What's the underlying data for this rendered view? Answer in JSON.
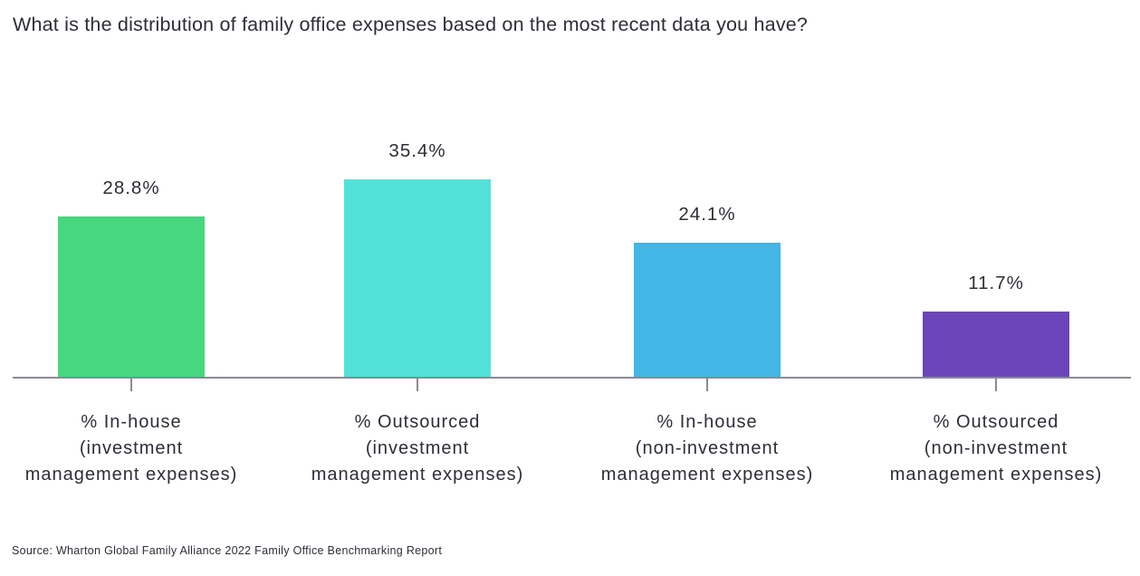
{
  "title": "What is the distribution of family office expenses based on the most recent data you have?",
  "source": "Source: Wharton Global Family Alliance 2022 Family Office Benchmarking Report",
  "chart_data": {
    "type": "bar",
    "title": "What is the distribution of family office expenses based on the most recent data you have?",
    "categories": [
      "% In-house\n(investment\nmanagement expenses)",
      "% Outsourced\n(investment\nmanagement expenses)",
      "% In-house\n(non-investment\nmanagement expenses)",
      "% Outsourced\n(non-investment\nmanagement expenses)"
    ],
    "values": [
      28.8,
      35.4,
      24.1,
      11.7
    ],
    "value_labels": [
      "28.8%",
      "35.4%",
      "24.1%",
      "11.7%"
    ],
    "bar_colors": [
      "#47d77e",
      "#52e2da",
      "#43b5e6",
      "#6a45b9"
    ],
    "xlabel": "",
    "ylabel": "",
    "ylim": [
      0,
      40
    ],
    "grid": false,
    "legend": false,
    "text_color": "#2e2e38",
    "axis_color": "#8a8a93",
    "annotation": "Source: Wharton Global Family Alliance 2022 Family Office Benchmarking Report"
  }
}
